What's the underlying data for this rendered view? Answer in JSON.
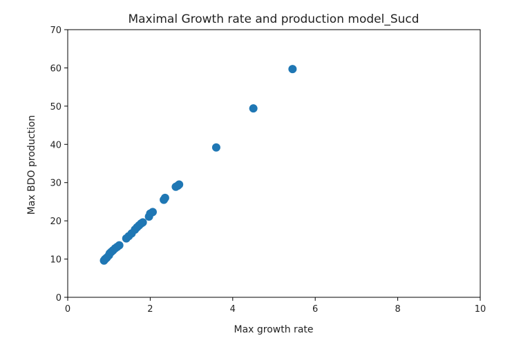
{
  "chart_data": {
    "type": "scatter",
    "title": "Maximal Growth rate and production model_Sucd",
    "xlabel": "Max growth rate",
    "ylabel": "Max BDO production",
    "xlim": [
      0,
      10
    ],
    "ylim": [
      0,
      70
    ],
    "xticks": [
      0,
      2,
      4,
      6,
      8,
      10
    ],
    "yticks": [
      0,
      10,
      20,
      30,
      40,
      50,
      60,
      70
    ],
    "grid": false,
    "series": [
      {
        "color": "#1f77b4",
        "points": [
          [
            0.88,
            9.6
          ],
          [
            0.9,
            9.9
          ],
          [
            0.92,
            10.1
          ],
          [
            0.95,
            10.4
          ],
          [
            1.0,
            11.0
          ],
          [
            1.02,
            11.5
          ],
          [
            1.06,
            11.9
          ],
          [
            1.1,
            12.3
          ],
          [
            1.15,
            12.8
          ],
          [
            1.2,
            13.2
          ],
          [
            1.25,
            13.6
          ],
          [
            1.42,
            15.4
          ],
          [
            1.48,
            16.0
          ],
          [
            1.55,
            16.7
          ],
          [
            1.63,
            17.7
          ],
          [
            1.68,
            18.3
          ],
          [
            1.73,
            18.8
          ],
          [
            1.78,
            19.3
          ],
          [
            1.82,
            19.6
          ],
          [
            1.97,
            21.1
          ],
          [
            2.0,
            21.9
          ],
          [
            2.06,
            22.3
          ],
          [
            2.33,
            25.5
          ],
          [
            2.36,
            26.0
          ],
          [
            2.62,
            28.9
          ],
          [
            2.67,
            29.2
          ],
          [
            2.7,
            29.5
          ],
          [
            3.6,
            39.2
          ],
          [
            4.5,
            49.4
          ],
          [
            5.45,
            59.7
          ]
        ]
      }
    ]
  }
}
